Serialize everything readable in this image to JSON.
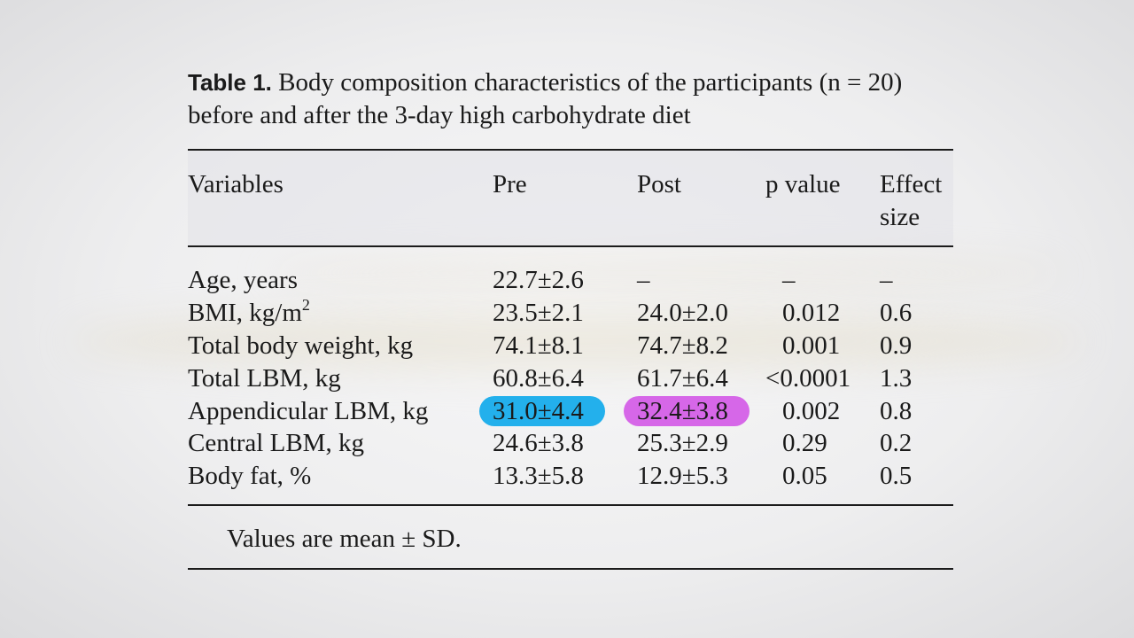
{
  "caption": {
    "label": "Table 1.",
    "text": "Body composition characteristics of the participants (n = 20) before and after the 3-day high carbohydrate diet"
  },
  "table": {
    "headers": [
      "Variables",
      "Pre",
      "Post",
      "p value",
      "Effect size"
    ],
    "rows": [
      {
        "variable": "Age, years",
        "pre": "22.7±2.6",
        "post": "–",
        "p": "–",
        "effect": "–"
      },
      {
        "variable": "BMI, kg/m",
        "variable_sup": "2",
        "pre": "23.5±2.1",
        "post": "24.0±2.0",
        "p": "0.012",
        "effect": "0.6"
      },
      {
        "variable": "Total body weight, kg",
        "pre": "74.1±8.1",
        "post": "74.7±8.2",
        "p": "0.001",
        "effect": "0.9"
      },
      {
        "variable": "Total LBM, kg",
        "pre": "60.8±6.4",
        "post": "61.7±6.4",
        "p": "<0.0001",
        "effect": "1.3"
      },
      {
        "variable": "Appendicular LBM, kg",
        "pre": "31.0±4.4",
        "post": "32.4±3.8",
        "p": "0.002",
        "effect": "0.8"
      },
      {
        "variable": "Central LBM, kg",
        "pre": "24.6±3.8",
        "post": "25.3±2.9",
        "p": "0.29",
        "effect": "0.2"
      },
      {
        "variable": "Body fat, %",
        "pre": "13.3±5.8",
        "post": "12.9±5.3",
        "p": "0.05",
        "effect": "0.5"
      }
    ],
    "footnote": "Values are mean ± SD."
  },
  "highlights": {
    "pre_color": "#23b0ec",
    "post_color": "#d667e8"
  }
}
